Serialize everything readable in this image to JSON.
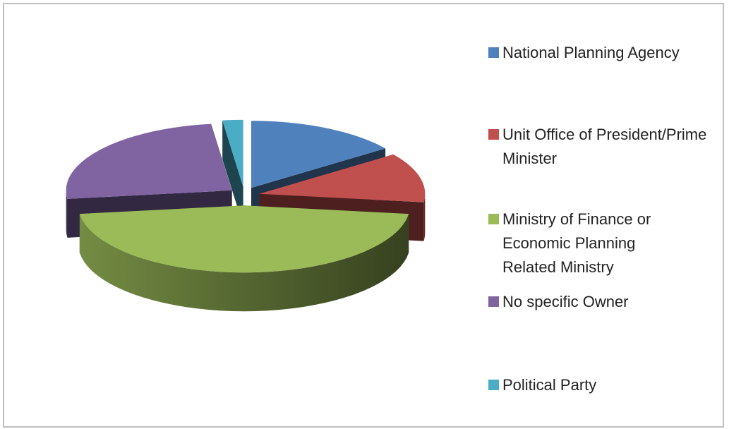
{
  "chart_data": {
    "type": "pie",
    "categories": [
      "National Planning Agency",
      "Unit Office of President/Prime Minister",
      "Ministry of Finance or Economic Planning Related Ministry",
      "No specific Owner",
      "Political Party"
    ],
    "values": [
      15,
      12,
      46,
      25,
      2
    ],
    "colors": [
      "#4f81bd",
      "#c0504d",
      "#9bbb59",
      "#8064a2",
      "#4bacc6"
    ],
    "legend": "right"
  }
}
